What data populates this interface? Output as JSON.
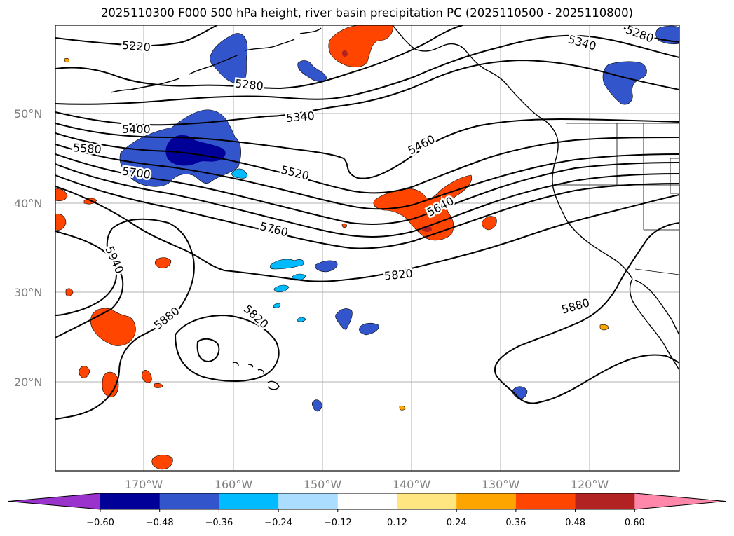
{
  "title": "2025110300 F000 500 hPa height, river basin precipitation PC (2025110500 - 2025110800)",
  "axes": {
    "lat_labels": [
      "50°N",
      "40°N",
      "30°N",
      "20°N"
    ],
    "lon_labels": [
      "170°W",
      "160°W",
      "150°W",
      "140°W",
      "130°W",
      "120°W"
    ]
  },
  "contour_labels": [
    "5220",
    "5280",
    "5280",
    "5340",
    "5340",
    "5400",
    "5460",
    "5520",
    "5580",
    "5640",
    "5700",
    "5760",
    "5820",
    "5820",
    "5880",
    "5880",
    "5940"
  ],
  "colorbar": {
    "ticks": [
      "−0.60",
      "−0.48",
      "−0.36",
      "−0.24",
      "−0.12",
      "0.12",
      "0.24",
      "0.36",
      "0.48",
      "0.60"
    ],
    "colors": [
      "#9933cc",
      "#000099",
      "#3355cc",
      "#00bbff",
      "#aaddff",
      "#ffffff",
      "#ffe680",
      "#ffa500",
      "#ff4500",
      "#b22222",
      "#ff88aa"
    ]
  },
  "colors": {
    "neg_strong": "#000099",
    "neg": "#3355cc",
    "neg_light": "#00bbff",
    "pos": "#ff4500",
    "pos_light": "#ffa500",
    "pos_strong": "#b22222",
    "grid": "#b0b0b0"
  }
}
